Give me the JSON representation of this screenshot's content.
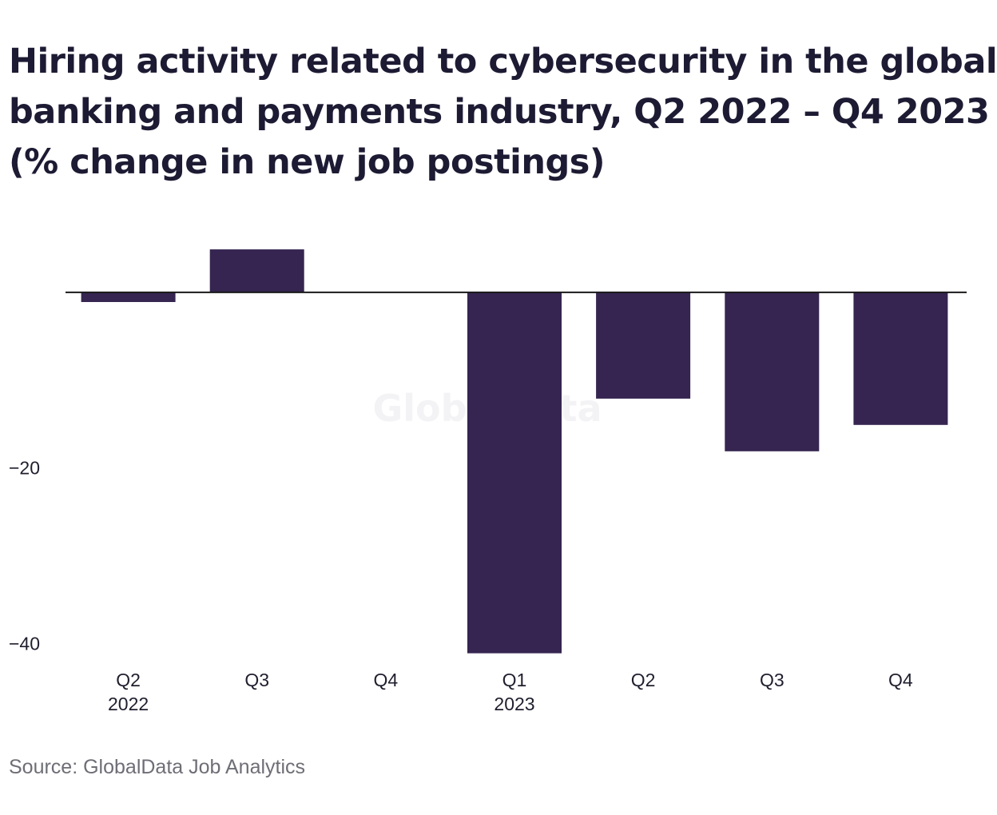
{
  "chart_data": {
    "type": "bar",
    "title_lines": [
      "Hiring activity related to cybersecurity in the global",
      "banking and payments industry, Q2 2022 – Q4 2023",
      "(% change in new job postings)"
    ],
    "categories": [
      "Q2",
      "Q3",
      "Q4",
      "Q1",
      "Q2",
      "Q3",
      "Q4"
    ],
    "year_labels": [
      "2022",
      "",
      "",
      "2023",
      "",
      "",
      ""
    ],
    "values": [
      -1.1,
      4.9,
      0,
      -41.1,
      -12.1,
      -18.1,
      -15.1
    ],
    "ylim": [
      -41.5,
      6
    ],
    "yticks": [
      {
        "value": -20,
        "label": "−20"
      },
      {
        "value": -40,
        "label": "−40"
      }
    ],
    "xlabel": "",
    "ylabel": "",
    "grid": false,
    "legend": "none",
    "bar_color": "#352550",
    "zero_line_color": "#1a1a1a",
    "watermark": "GlobalData"
  },
  "source": "Source: GlobalData Job Analytics"
}
